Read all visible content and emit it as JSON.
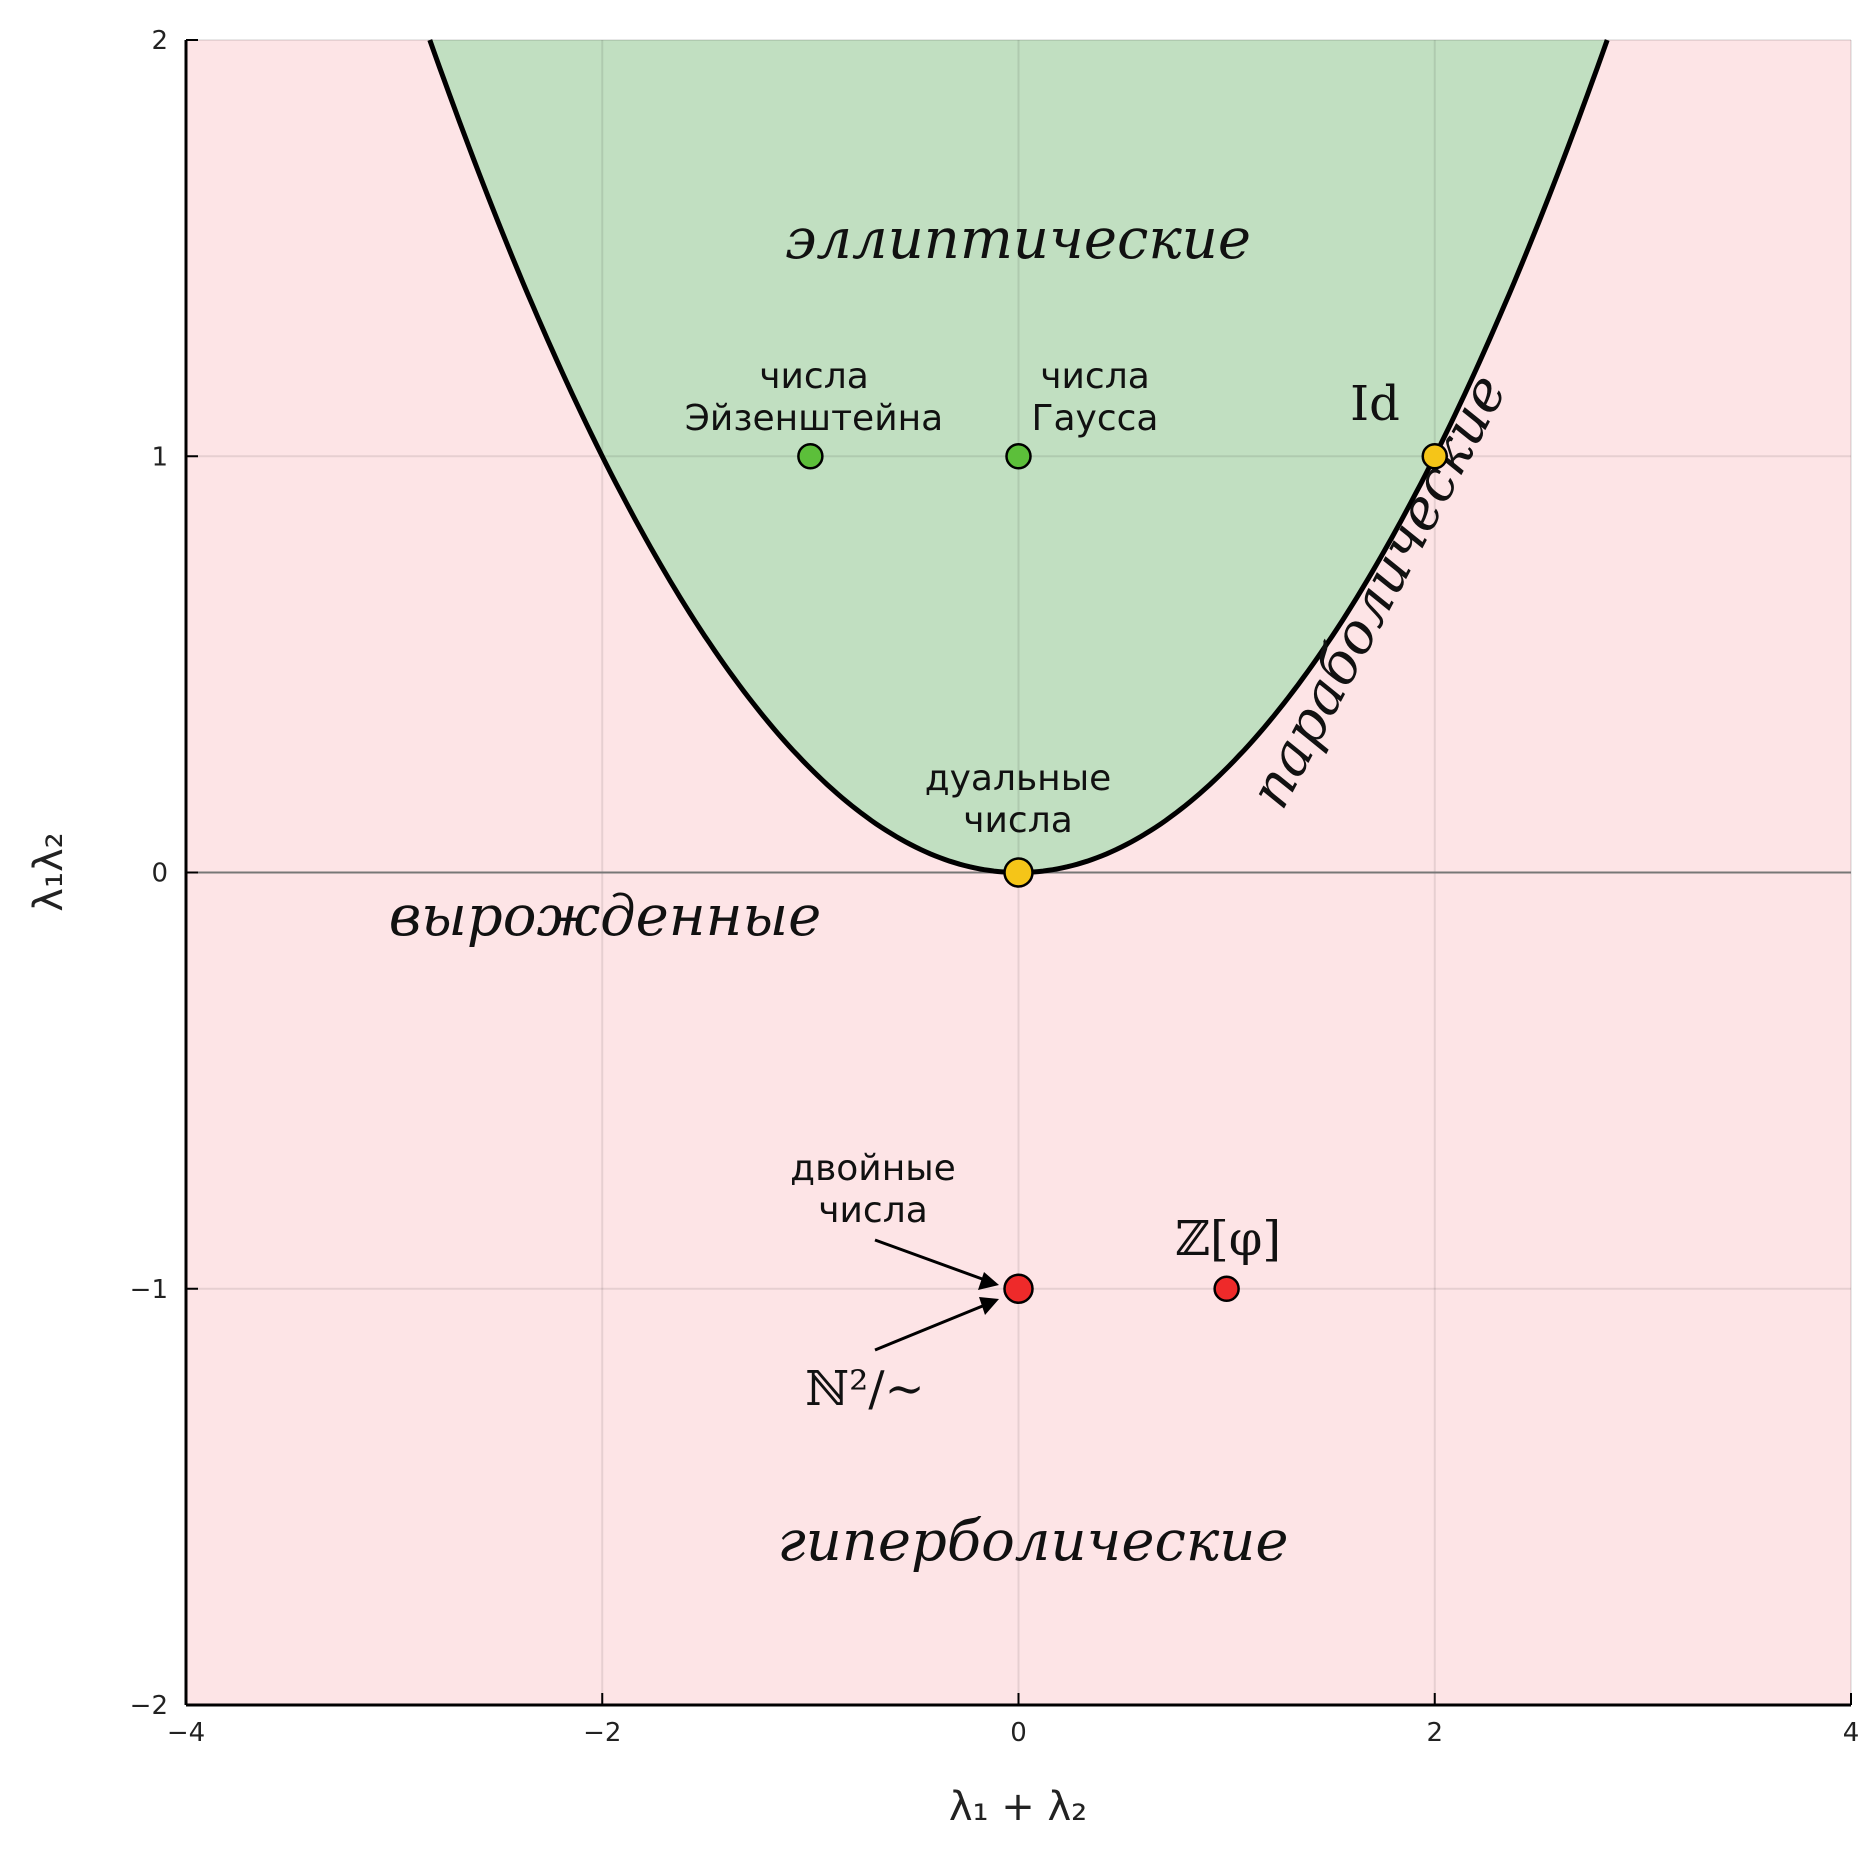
{
  "chart_data": {
    "type": "scatter",
    "title": "",
    "xlabel": "λ₁ + λ₂",
    "ylabel": "λ₁λ₂",
    "xlim": [
      -4,
      4
    ],
    "ylim": [
      -2,
      2
    ],
    "xticks": [
      -4,
      -2,
      0,
      2,
      4
    ],
    "xtick_labels": [
      "−4",
      "−2",
      "0",
      "2",
      "4"
    ],
    "yticks": [
      -2,
      -1,
      0,
      1,
      2
    ],
    "ytick_labels": [
      "−2",
      "−1",
      "0",
      "1",
      "2"
    ],
    "grid": true,
    "boundary": {
      "equation": "y = x²/4"
    },
    "colors": {
      "elliptic_region": "#c1dfc1",
      "other_region": "#fde4e6",
      "boundary": "#000000",
      "green_point": "#5cbf3a",
      "yellow_point": "#f5c518",
      "red_point": "#ee2a2a"
    },
    "region_labels": [
      {
        "text": "эллиптические",
        "x": 0,
        "y": 1.5
      },
      {
        "text": "вырожденные",
        "x": -2,
        "y": -0.1
      },
      {
        "text": "гиперболические",
        "x": 0,
        "y": -1.6
      },
      {
        "text": "параболические",
        "x": 1.95,
        "y": 0.95,
        "rotate": -62
      }
    ],
    "points": [
      {
        "x": -1,
        "y": 1,
        "color": "green",
        "label": [
          "числа",
          "Эйзенштейна"
        ]
      },
      {
        "x": 0,
        "y": 1,
        "color": "green",
        "label": [
          "числа",
          "Гаусса"
        ]
      },
      {
        "x": 2,
        "y": 1,
        "color": "yellow",
        "label": [
          "Id"
        ]
      },
      {
        "x": 0,
        "y": 0,
        "color": "yellow",
        "label": [
          "дуальные",
          "числа"
        ]
      },
      {
        "x": 0,
        "y": -1,
        "color": "red",
        "label": [
          "двойные",
          "числа"
        ]
      },
      {
        "x": 1,
        "y": -1,
        "color": "red",
        "label": [
          "ℤ[φ]"
        ]
      }
    ],
    "extra_labels": [
      {
        "text": "ℕ²/∼",
        "x": -0.75,
        "y": -1.25,
        "arrow_to": {
          "x": 0,
          "y": -1
        }
      }
    ]
  }
}
